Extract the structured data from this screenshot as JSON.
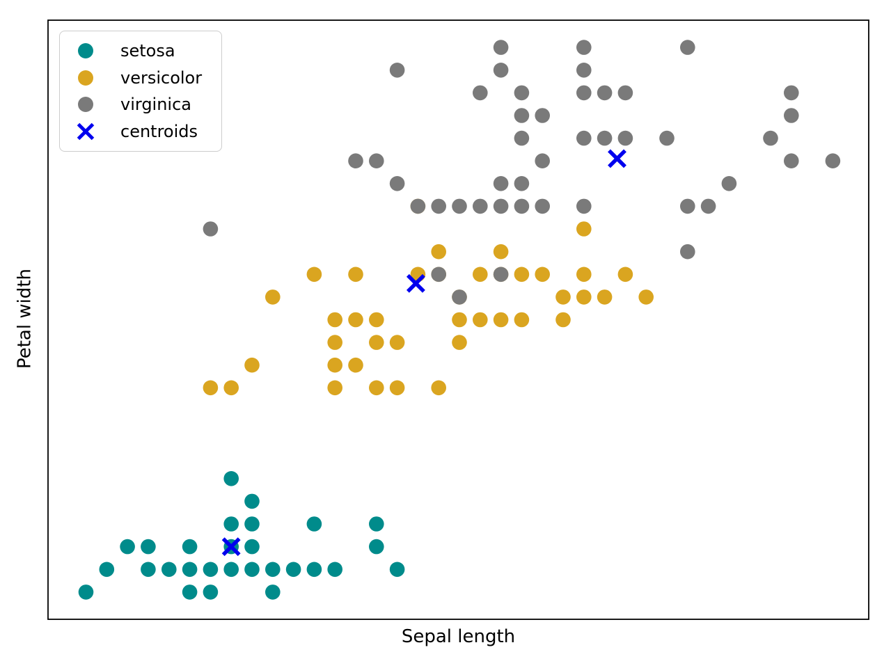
{
  "chart_data": {
    "type": "scatter",
    "title": "",
    "xlabel": "Sepal length",
    "ylabel": "Petal width",
    "xlim": [
      4.117,
      8.073
    ],
    "ylim": [
      -0.02,
      2.62
    ],
    "grid": false,
    "background": "#ffffff",
    "border_color": "#000000",
    "legend": {
      "position": "upper left",
      "entries": [
        "setosa",
        "versicolor",
        "virginica",
        "centroids"
      ]
    },
    "series": [
      {
        "name": "setosa",
        "marker": "circle",
        "color": "#008b8b",
        "points": [
          [
            4.3,
            0.1
          ],
          [
            4.8,
            0.1
          ],
          [
            4.9,
            0.1
          ],
          [
            5.2,
            0.1
          ],
          [
            4.4,
            0.2
          ],
          [
            4.6,
            0.2
          ],
          [
            4.7,
            0.2
          ],
          [
            4.8,
            0.2
          ],
          [
            4.9,
            0.2
          ],
          [
            5.0,
            0.2
          ],
          [
            5.1,
            0.2
          ],
          [
            5.2,
            0.2
          ],
          [
            5.3,
            0.2
          ],
          [
            5.4,
            0.2
          ],
          [
            5.5,
            0.2
          ],
          [
            5.8,
            0.2
          ],
          [
            4.5,
            0.3
          ],
          [
            4.6,
            0.3
          ],
          [
            4.8,
            0.3
          ],
          [
            5.0,
            0.3
          ],
          [
            5.1,
            0.3
          ],
          [
            5.7,
            0.3
          ],
          [
            5.0,
            0.4
          ],
          [
            5.1,
            0.4
          ],
          [
            5.4,
            0.4
          ],
          [
            5.7,
            0.4
          ],
          [
            5.1,
            0.5
          ],
          [
            5.0,
            0.6
          ]
        ]
      },
      {
        "name": "versicolor",
        "marker": "circle",
        "color": "#daa520",
        "points": [
          [
            4.9,
            1.0
          ],
          [
            5.0,
            1.0
          ],
          [
            5.5,
            1.0
          ],
          [
            5.7,
            1.0
          ],
          [
            5.8,
            1.0
          ],
          [
            6.0,
            1.0
          ],
          [
            5.1,
            1.1
          ],
          [
            5.5,
            1.1
          ],
          [
            5.6,
            1.1
          ],
          [
            5.5,
            1.2
          ],
          [
            5.7,
            1.2
          ],
          [
            5.8,
            1.2
          ],
          [
            6.1,
            1.2
          ],
          [
            5.5,
            1.3
          ],
          [
            5.6,
            1.3
          ],
          [
            5.7,
            1.3
          ],
          [
            6.1,
            1.3
          ],
          [
            6.2,
            1.3
          ],
          [
            6.3,
            1.3
          ],
          [
            6.4,
            1.3
          ],
          [
            6.6,
            1.3
          ],
          [
            5.2,
            1.4
          ],
          [
            6.1,
            1.4
          ],
          [
            6.6,
            1.4
          ],
          [
            6.7,
            1.4
          ],
          [
            6.8,
            1.4
          ],
          [
            7.0,
            1.4
          ],
          [
            5.4,
            1.5
          ],
          [
            5.6,
            1.5
          ],
          [
            5.9,
            1.5
          ],
          [
            6.0,
            1.5
          ],
          [
            6.2,
            1.5
          ],
          [
            6.3,
            1.5
          ],
          [
            6.4,
            1.5
          ],
          [
            6.5,
            1.5
          ],
          [
            6.7,
            1.5
          ],
          [
            6.9,
            1.5
          ],
          [
            6.0,
            1.6
          ],
          [
            6.3,
            1.6
          ],
          [
            6.7,
            1.7
          ],
          [
            5.9,
            1.8
          ]
        ]
      },
      {
        "name": "virginica",
        "marker": "circle",
        "color": "#7a7a7a",
        "points": [
          [
            6.1,
            1.4
          ],
          [
            6.0,
            1.5
          ],
          [
            6.3,
            1.5
          ],
          [
            7.2,
            1.6
          ],
          [
            4.9,
            1.7
          ],
          [
            5.9,
            1.8
          ],
          [
            6.0,
            1.8
          ],
          [
            6.1,
            1.8
          ],
          [
            6.2,
            1.8
          ],
          [
            6.3,
            1.8
          ],
          [
            6.4,
            1.8
          ],
          [
            6.5,
            1.8
          ],
          [
            6.7,
            1.8
          ],
          [
            7.2,
            1.8
          ],
          [
            7.3,
            1.8
          ],
          [
            5.8,
            1.9
          ],
          [
            6.3,
            1.9
          ],
          [
            6.4,
            1.9
          ],
          [
            7.4,
            1.9
          ],
          [
            5.6,
            2.0
          ],
          [
            5.7,
            2.0
          ],
          [
            6.5,
            2.0
          ],
          [
            7.7,
            2.0
          ],
          [
            7.9,
            2.0
          ],
          [
            6.4,
            2.1
          ],
          [
            6.7,
            2.1
          ],
          [
            6.8,
            2.1
          ],
          [
            6.9,
            2.1
          ],
          [
            7.1,
            2.1
          ],
          [
            7.6,
            2.1
          ],
          [
            6.4,
            2.2
          ],
          [
            6.5,
            2.2
          ],
          [
            7.7,
            2.2
          ],
          [
            6.2,
            2.3
          ],
          [
            6.4,
            2.3
          ],
          [
            6.7,
            2.3
          ],
          [
            6.8,
            2.3
          ],
          [
            6.9,
            2.3
          ],
          [
            7.7,
            2.3
          ],
          [
            5.8,
            2.4
          ],
          [
            6.3,
            2.4
          ],
          [
            6.7,
            2.4
          ],
          [
            6.3,
            2.5
          ],
          [
            6.7,
            2.5
          ],
          [
            7.2,
            2.5
          ]
        ]
      },
      {
        "name": "centroids",
        "marker": "x",
        "color": "#0000ee",
        "points": [
          [
            5.0,
            0.3
          ],
          [
            5.89,
            1.46
          ],
          [
            6.86,
            2.01
          ]
        ]
      }
    ]
  }
}
